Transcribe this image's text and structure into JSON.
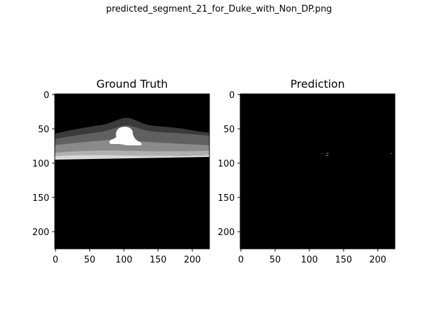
{
  "figure": {
    "suptitle": "predicted_segment_21_for_Duke_with_Non_DP.png"
  },
  "panels": [
    {
      "title": "Ground Truth",
      "content": "retinal OCT layer segmentation mask (grayscale bands with bright central lesion)",
      "x_ticks": [
        "0",
        "50",
        "100",
        "150",
        "200"
      ],
      "y_ticks": [
        "0",
        "50",
        "100",
        "150",
        "200"
      ]
    },
    {
      "title": "Prediction",
      "content": "almost entirely black prediction with a few tiny specks near y≈87",
      "x_ticks": [
        "0",
        "50",
        "100",
        "150",
        "200"
      ],
      "y_ticks": [
        "0",
        "50",
        "100",
        "150",
        "200"
      ]
    }
  ],
  "colors": {
    "background": "#ffffff",
    "image_black": "#000000",
    "layer_dark": "#3a3a3a",
    "layer_mid": "#606060",
    "layer_light": "#8a8a8a",
    "layer_lighter": "#b0b0b0",
    "bright": "#ffffff"
  }
}
